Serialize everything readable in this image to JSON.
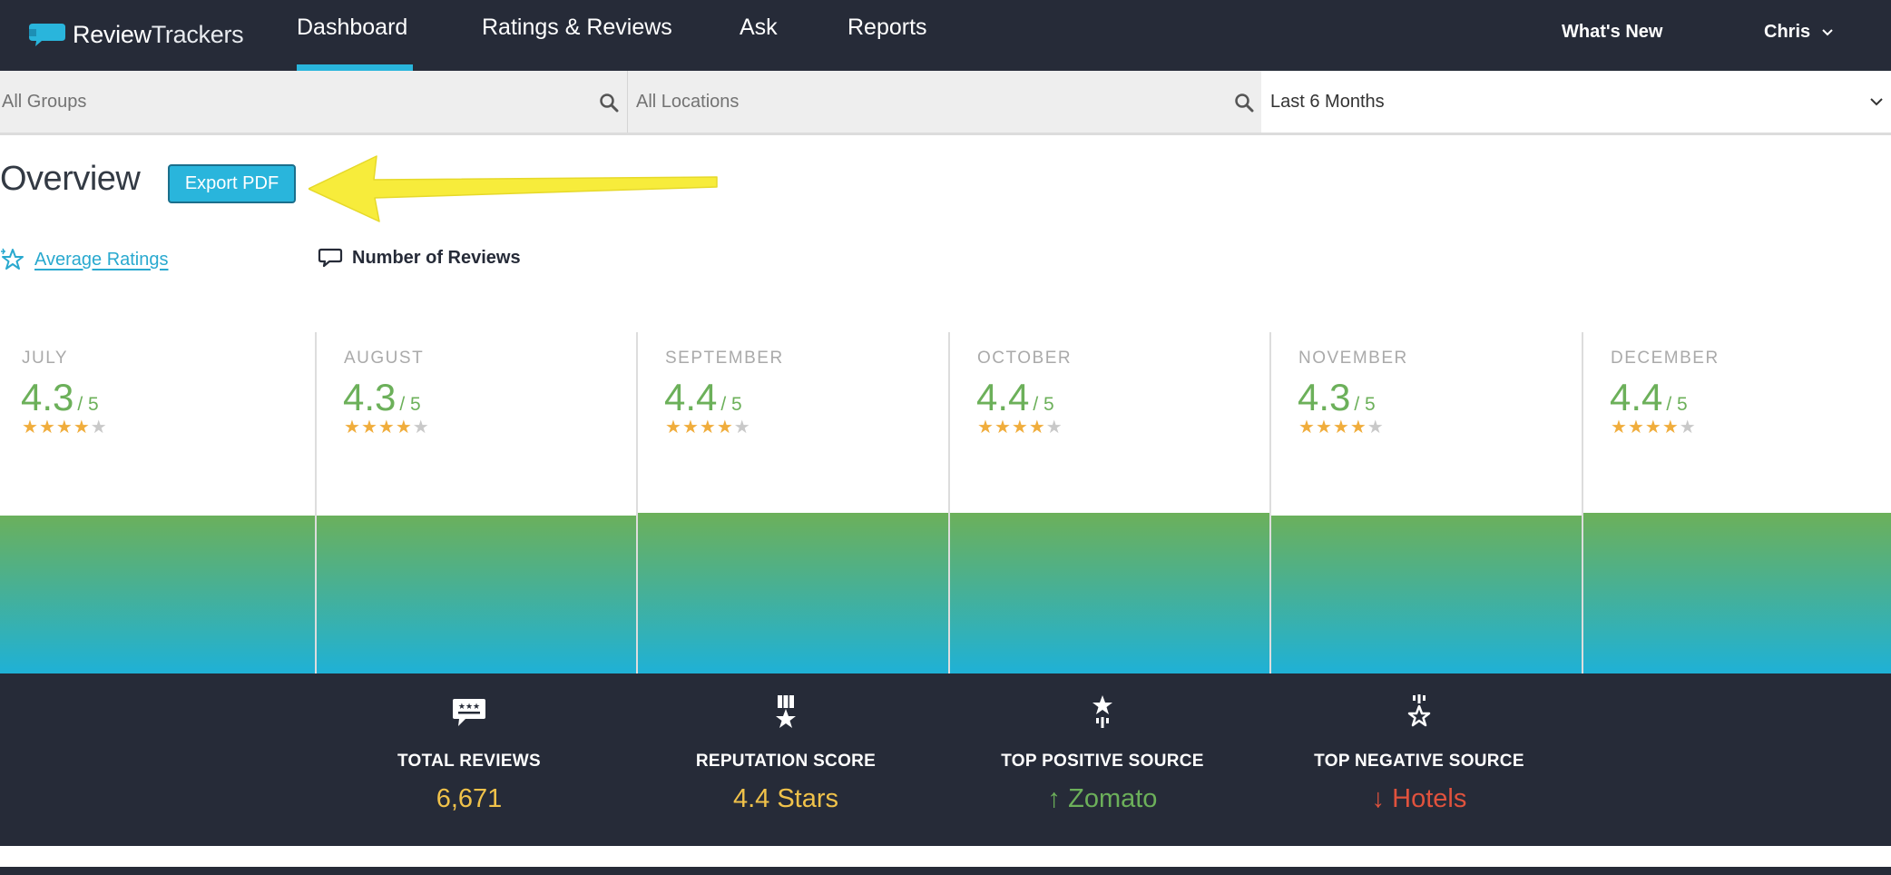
{
  "brand": {
    "name_bold": "Review",
    "name_light": "Trackers",
    "accent": "#29b5dc",
    "dark": "#262b38"
  },
  "nav": {
    "tabs": [
      {
        "label": "Dashboard",
        "active": true
      },
      {
        "label": "Ratings & Reviews",
        "active": false
      },
      {
        "label": "Ask",
        "active": false
      },
      {
        "label": "Reports",
        "active": false
      }
    ],
    "whats_new": "What's New",
    "user": "Chris"
  },
  "filters": {
    "groups": "All Groups",
    "locations": "All Locations",
    "date_range": "Last 6 Months"
  },
  "overview": {
    "title": "Overview",
    "export_label": "Export PDF",
    "metric_tabs": [
      "Average Ratings",
      "Number of Reviews"
    ]
  },
  "chart_data": {
    "type": "area",
    "categories": [
      "JULY",
      "AUGUST",
      "SEPTEMBER",
      "OCTOBER",
      "NOVEMBER",
      "DECEMBER"
    ],
    "values": [
      4.3,
      4.3,
      4.4,
      4.4,
      4.3,
      4.4
    ],
    "value_suffix": "/ 5",
    "stars_filled": [
      4,
      4,
      4,
      4,
      4,
      4
    ],
    "stars_total": 5,
    "colors": {
      "top": "#6cb05a",
      "bottom": "#1fb1d6",
      "score": "#6cb05a",
      "star": "#f0ad3c"
    }
  },
  "stats": [
    {
      "icon": "review-bubble-icon",
      "label": "TOTAL REVIEWS",
      "value": "6,671",
      "color": "#f0c24a"
    },
    {
      "icon": "medal-star-icon",
      "label": "REPUTATION SCORE",
      "value": "4.4 Stars",
      "color": "#f0c24a"
    },
    {
      "icon": "star-up-icon",
      "label": "TOP POSITIVE SOURCE",
      "value": "Zomato",
      "arrow": "↑",
      "color": "#6cb05a"
    },
    {
      "icon": "star-down-icon",
      "label": "TOP NEGATIVE SOURCE",
      "value": "Hotels",
      "arrow": "↓",
      "color": "#e0523d"
    }
  ]
}
